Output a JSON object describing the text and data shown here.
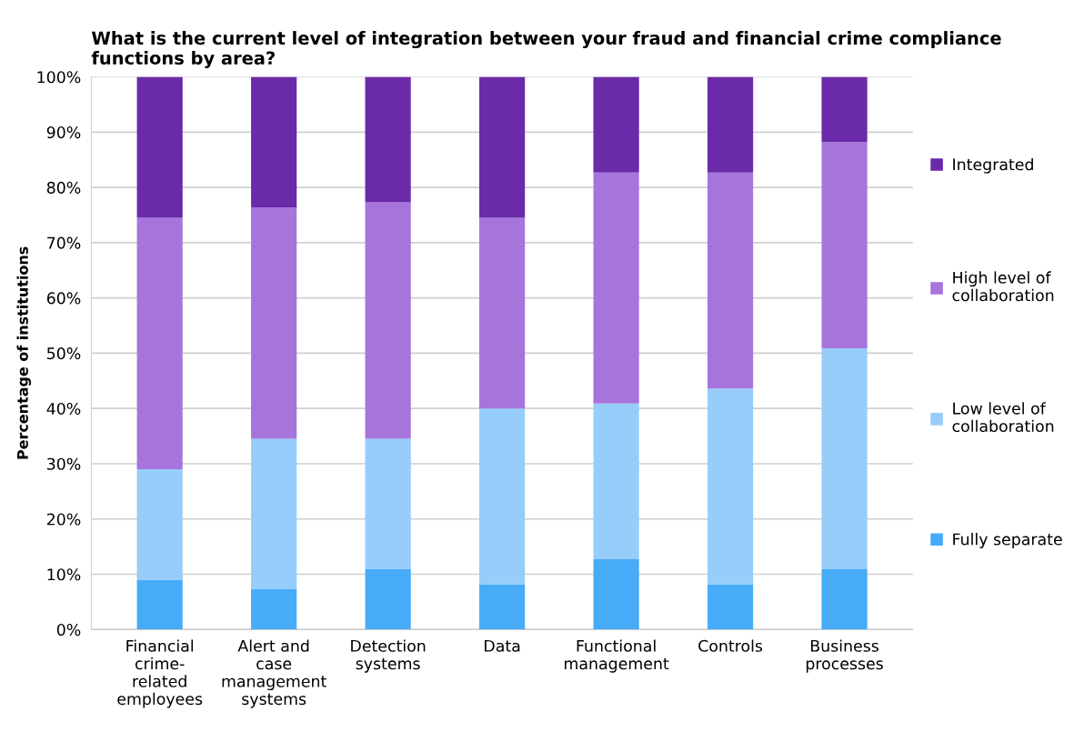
{
  "chart_data": {
    "type": "bar",
    "stacked": true,
    "title": "What is the current level of integration between your fraud and financial crime compliance functions by area?",
    "ylabel": "Percentage of institutions",
    "categories": [
      "Financial crime-related employees",
      "Alert and case management systems",
      "Detection systems",
      "Data",
      "Functional management",
      "Controls",
      "Business processes"
    ],
    "series": [
      {
        "name": "Fully separate",
        "color": "#47abf7",
        "values": [
          9,
          7.3,
          11,
          8.2,
          12.7,
          8.2,
          10.9
        ]
      },
      {
        "name": "Low level of collaboration",
        "color": "#96cdfa",
        "values": [
          20,
          27.2,
          23.5,
          31.8,
          28.2,
          35.4,
          40
        ]
      },
      {
        "name": "High level of collaboration",
        "color": "#a774dc",
        "values": [
          45.5,
          41.9,
          42.8,
          34.5,
          41.8,
          39.1,
          37.3
        ]
      },
      {
        "name": "Integrated",
        "color": "#6b2aa8",
        "values": [
          25.5,
          23.6,
          22.7,
          25.5,
          17.3,
          17.3,
          11.8
        ]
      }
    ],
    "ylim": [
      0,
      100
    ],
    "yticks": [
      {
        "value": 0,
        "label": "0%"
      },
      {
        "value": 10,
        "label": "10%"
      },
      {
        "value": 20,
        "label": "20%"
      },
      {
        "value": 30,
        "label": "30%"
      },
      {
        "value": 40,
        "label": "40%"
      },
      {
        "value": 50,
        "label": "50%"
      },
      {
        "value": 60,
        "label": "60%"
      },
      {
        "value": 70,
        "label": "70%"
      },
      {
        "value": 80,
        "label": "80%"
      },
      {
        "value": 90,
        "label": "90%"
      },
      {
        "value": 100,
        "label": "100%"
      }
    ],
    "grid": "y",
    "legend": "right"
  }
}
